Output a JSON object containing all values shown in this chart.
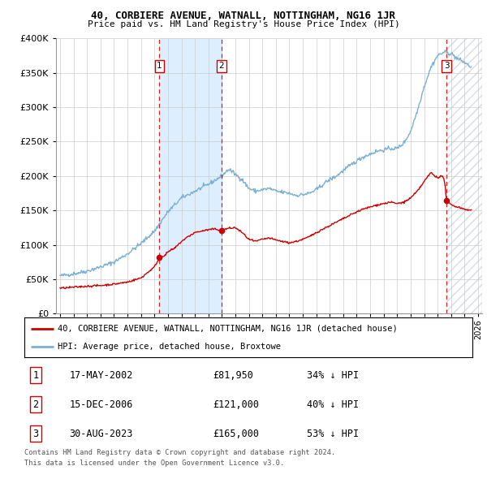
{
  "title": "40, CORBIERE AVENUE, WATNALL, NOTTINGHAM, NG16 1JR",
  "subtitle": "Price paid vs. HM Land Registry's House Price Index (HPI)",
  "ylim": [
    0,
    400000
  ],
  "xlim_start": 1994.7,
  "xlim_end": 2026.3,
  "hpi_color": "#7ab0d4",
  "price_color": "#cc0000",
  "vline_color": "#cc0000",
  "grid_color": "#cccccc",
  "background_color": "#ffffff",
  "legend_label_red": "40, CORBIERE AVENUE, WATNALL, NOTTINGHAM, NG16 1JR (detached house)",
  "legend_label_blue": "HPI: Average price, detached house, Broxtowe",
  "shade_color": "#ddeeff",
  "hatch_color": "#ccddee",
  "transactions": [
    {
      "num": 1,
      "date": "17-MAY-2002",
      "price": 81950,
      "pct": "34%",
      "x": 2002.37
    },
    {
      "num": 2,
      "date": "15-DEC-2006",
      "price": 121000,
      "pct": "40%",
      "x": 2006.96
    },
    {
      "num": 3,
      "date": "30-AUG-2023",
      "price": 165000,
      "pct": "53%",
      "x": 2023.66
    }
  ],
  "footer1": "Contains HM Land Registry data © Crown copyright and database right 2024.",
  "footer2": "This data is licensed under the Open Government Licence v3.0.",
  "hpi_anchors": [
    [
      1995.0,
      55000
    ],
    [
      1996.0,
      58000
    ],
    [
      1997.0,
      62000
    ],
    [
      1998.0,
      68000
    ],
    [
      1999.0,
      75000
    ],
    [
      2000.0,
      87000
    ],
    [
      2001.0,
      102000
    ],
    [
      2002.0,
      120000
    ],
    [
      2003.0,
      148000
    ],
    [
      2004.0,
      168000
    ],
    [
      2005.0,
      178000
    ],
    [
      2006.0,
      188000
    ],
    [
      2007.0,
      200000
    ],
    [
      2007.5,
      210000
    ],
    [
      2008.5,
      195000
    ],
    [
      2009.0,
      182000
    ],
    [
      2009.5,
      178000
    ],
    [
      2010.0,
      180000
    ],
    [
      2010.5,
      182000
    ],
    [
      2011.0,
      178000
    ],
    [
      2012.0,
      175000
    ],
    [
      2012.5,
      172000
    ],
    [
      2013.0,
      173000
    ],
    [
      2013.5,
      175000
    ],
    [
      2014.0,
      180000
    ],
    [
      2014.5,
      188000
    ],
    [
      2015.0,
      195000
    ],
    [
      2015.5,
      200000
    ],
    [
      2016.0,
      208000
    ],
    [
      2016.5,
      215000
    ],
    [
      2017.0,
      222000
    ],
    [
      2017.5,
      228000
    ],
    [
      2018.0,
      232000
    ],
    [
      2018.5,
      236000
    ],
    [
      2019.0,
      238000
    ],
    [
      2019.5,
      240000
    ],
    [
      2020.0,
      240000
    ],
    [
      2020.5,
      248000
    ],
    [
      2021.0,
      265000
    ],
    [
      2021.5,
      295000
    ],
    [
      2022.0,
      330000
    ],
    [
      2022.5,
      358000
    ],
    [
      2023.0,
      375000
    ],
    [
      2023.5,
      380000
    ],
    [
      2024.0,
      378000
    ],
    [
      2024.5,
      370000
    ],
    [
      2025.0,
      365000
    ],
    [
      2025.5,
      358000
    ]
  ],
  "price_anchors": [
    [
      1995.0,
      37000
    ],
    [
      1996.0,
      38500
    ],
    [
      1997.0,
      40000
    ],
    [
      1998.0,
      41000
    ],
    [
      1999.0,
      43000
    ],
    [
      2000.0,
      46000
    ],
    [
      2001.0,
      52000
    ],
    [
      2002.0,
      68000
    ],
    [
      2002.37,
      81950
    ],
    [
      2002.8,
      85000
    ],
    [
      2003.0,
      90000
    ],
    [
      2003.5,
      95000
    ],
    [
      2004.0,
      105000
    ],
    [
      2004.5,
      112000
    ],
    [
      2005.0,
      118000
    ],
    [
      2005.5,
      120000
    ],
    [
      2006.0,
      122000
    ],
    [
      2006.5,
      123000
    ],
    [
      2006.96,
      121000
    ],
    [
      2007.0,
      122000
    ],
    [
      2007.5,
      124000
    ],
    [
      2008.0,
      125000
    ],
    [
      2008.5,
      118000
    ],
    [
      2009.0,
      108000
    ],
    [
      2009.5,
      105000
    ],
    [
      2010.0,
      108000
    ],
    [
      2010.5,
      110000
    ],
    [
      2011.0,
      107000
    ],
    [
      2011.5,
      105000
    ],
    [
      2012.0,
      103000
    ],
    [
      2012.5,
      105000
    ],
    [
      2013.0,
      108000
    ],
    [
      2013.5,
      112000
    ],
    [
      2014.0,
      118000
    ],
    [
      2014.5,
      123000
    ],
    [
      2015.0,
      128000
    ],
    [
      2015.5,
      133000
    ],
    [
      2016.0,
      138000
    ],
    [
      2016.5,
      143000
    ],
    [
      2017.0,
      148000
    ],
    [
      2017.5,
      152000
    ],
    [
      2018.0,
      155000
    ],
    [
      2018.5,
      158000
    ],
    [
      2019.0,
      160000
    ],
    [
      2019.5,
      162000
    ],
    [
      2020.0,
      160000
    ],
    [
      2020.5,
      162000
    ],
    [
      2021.0,
      168000
    ],
    [
      2021.5,
      178000
    ],
    [
      2022.0,
      192000
    ],
    [
      2022.3,
      200000
    ],
    [
      2022.5,
      205000
    ],
    [
      2022.8,
      200000
    ],
    [
      2023.0,
      198000
    ],
    [
      2023.3,
      200000
    ],
    [
      2023.5,
      195000
    ],
    [
      2023.66,
      165000
    ],
    [
      2024.0,
      158000
    ],
    [
      2024.5,
      155000
    ],
    [
      2025.0,
      152000
    ],
    [
      2025.5,
      150000
    ]
  ]
}
